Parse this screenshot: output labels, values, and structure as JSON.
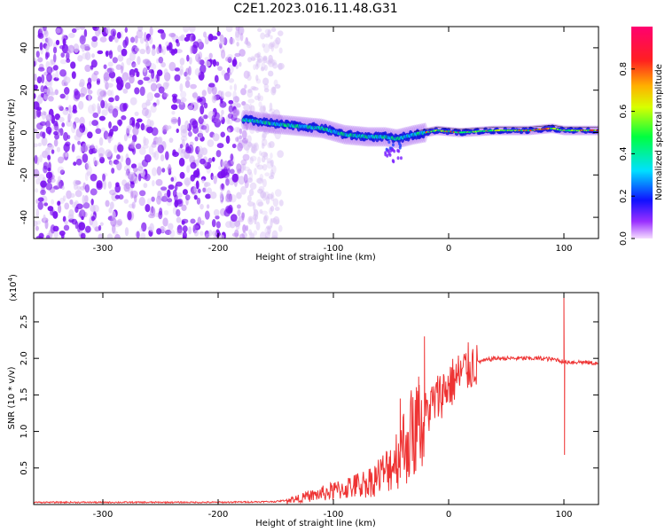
{
  "title": "C2E1.2023.016.11.48.G31",
  "chart_data": [
    {
      "type": "heatmap",
      "xlabel": "Height of straight line (km)",
      "ylabel": "Frequency (Hz)",
      "xlim": [
        -360,
        130
      ],
      "ylim": [
        -50,
        50
      ],
      "xticks": [
        -300,
        -200,
        -100,
        0,
        100
      ],
      "yticks": [
        -40,
        -20,
        0,
        20,
        40
      ],
      "signal_trace": {
        "description_points_x": [
          -175,
          -150,
          -130,
          -110,
          -90,
          -70,
          -55,
          -45,
          -30,
          -10,
          10,
          40,
          70,
          90,
          100,
          120,
          130
        ],
        "description_points_y": [
          6,
          4,
          3,
          2,
          -1,
          -2,
          -2,
          -3,
          -1,
          1,
          0,
          1,
          1,
          2,
          1,
          1,
          1
        ]
      },
      "colorbar": {
        "label": "Normalized spectral amplitude",
        "range": [
          0.0,
          1.0
        ],
        "ticks": [
          0.0,
          0.2,
          0.4,
          0.6,
          0.8
        ],
        "tick_labels": [
          "0.0",
          "0.2",
          "0.4",
          "0.6",
          "0.8"
        ]
      }
    },
    {
      "type": "line",
      "xlabel": "Height of straight line (km)",
      "ylabel": "SNR (10 * v/v)",
      "scale_label": "(x10",
      "scale_exponent": "4",
      "scale_close": ")",
      "xlim": [
        -360,
        130
      ],
      "ylim": [
        0,
        2.9
      ],
      "xticks": [
        -300,
        -200,
        -100,
        0,
        100
      ],
      "yticks": [
        0.5,
        1.0,
        1.5,
        2.0,
        2.5
      ],
      "ytick_labels": [
        "0.5",
        "1.0",
        "1.5",
        "2.0",
        "2.5"
      ],
      "color": "#ee3333",
      "profile_x": [
        -360,
        -200,
        -150,
        -130,
        -110,
        -90,
        -70,
        -55,
        -45,
        -35,
        -25,
        -15,
        -5,
        5,
        15,
        25,
        40,
        60,
        80,
        95,
        100,
        105,
        115,
        130
      ],
      "profile_y": [
        0.03,
        0.03,
        0.04,
        0.08,
        0.15,
        0.22,
        0.3,
        0.45,
        0.65,
        0.9,
        1.1,
        1.35,
        1.55,
        1.7,
        1.85,
        1.95,
        2.0,
        2.0,
        2.0,
        1.98,
        1.95,
        1.95,
        1.95,
        1.93
      ],
      "spikes": [
        {
          "x": -21,
          "y": 2.3
        },
        {
          "x": -42,
          "y": 1.45
        },
        {
          "x": -26,
          "y": 1.75
        },
        {
          "x": 100,
          "y": 2.9
        },
        {
          "x": 100.5,
          "y": 0.68
        }
      ]
    }
  ]
}
